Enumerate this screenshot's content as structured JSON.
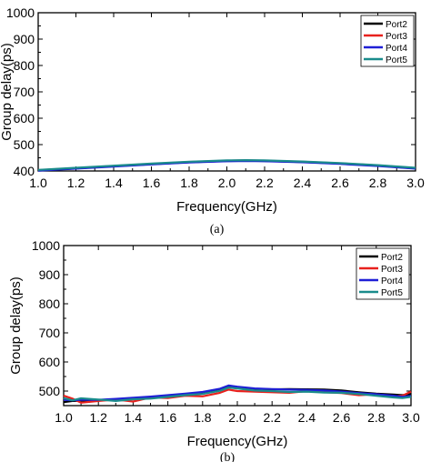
{
  "chart_data": [
    {
      "type": "line",
      "caption": "(a)",
      "xlabel": "Frequency(GHz)",
      "ylabel": "Group delay(ps)",
      "xlim": [
        1.0,
        3.0
      ],
      "ylim": [
        400,
        1000
      ],
      "xticks": [
        "1.0",
        "1.2",
        "1.4",
        "1.6",
        "1.8",
        "2.0",
        "2.2",
        "2.4",
        "2.6",
        "2.8",
        "3.0"
      ],
      "yticks": [
        "400",
        "500",
        "600",
        "700",
        "800",
        "900",
        "1000"
      ],
      "legend": "top-right",
      "grid": false,
      "x": [
        1.0,
        1.2,
        1.4,
        1.6,
        1.8,
        2.0,
        2.1,
        2.2,
        2.4,
        2.6,
        2.8,
        3.0
      ],
      "series": [
        {
          "name": "Port2",
          "color": "#000000",
          "values": [
            402,
            410,
            418,
            426,
            433,
            438,
            439,
            438,
            434,
            428,
            420,
            410
          ]
        },
        {
          "name": "Port3",
          "color": "#e8211d",
          "values": [
            403,
            411,
            419,
            427,
            434,
            439,
            440,
            439,
            435,
            429,
            421,
            411
          ]
        },
        {
          "name": "Port4",
          "color": "#1f1fd6",
          "values": [
            401,
            409,
            417,
            425,
            432,
            437,
            438,
            437,
            433,
            427,
            419,
            409
          ]
        },
        {
          "name": "Port5",
          "color": "#1a8c8c",
          "values": [
            404,
            412,
            420,
            428,
            435,
            440,
            441,
            440,
            436,
            430,
            422,
            412
          ]
        }
      ]
    },
    {
      "type": "line",
      "caption": "(b)",
      "xlabel": "Frequency(GHz)",
      "ylabel": "Group delay(ps)",
      "xlim": [
        1.0,
        3.0
      ],
      "ylim": [
        450,
        1000
      ],
      "xticks": [
        "1.0",
        "1.2",
        "1.4",
        "1.6",
        "1.8",
        "2.0",
        "2.2",
        "2.4",
        "2.6",
        "2.8",
        "3.0"
      ],
      "yticks": [
        "500",
        "600",
        "700",
        "800",
        "900",
        "1000"
      ],
      "legend": "top-right",
      "grid": false,
      "x": [
        1.0,
        1.05,
        1.1,
        1.2,
        1.3,
        1.4,
        1.5,
        1.6,
        1.7,
        1.8,
        1.9,
        1.95,
        2.0,
        2.1,
        2.2,
        2.3,
        2.4,
        2.5,
        2.6,
        2.7,
        2.8,
        2.9,
        2.95,
        3.0
      ],
      "series": [
        {
          "name": "Port2",
          "color": "#000000",
          "values": [
            462,
            466,
            467,
            468,
            470,
            474,
            478,
            483,
            488,
            494,
            505,
            516,
            512,
            507,
            506,
            507,
            506,
            505,
            502,
            496,
            491,
            488,
            486,
            490
          ]
        },
        {
          "name": "Port3",
          "color": "#e8211d",
          "values": [
            484,
            474,
            460,
            466,
            471,
            464,
            478,
            476,
            484,
            482,
            494,
            505,
            500,
            498,
            496,
            494,
            500,
            496,
            493,
            486,
            489,
            482,
            484,
            498
          ]
        },
        {
          "name": "Port4",
          "color": "#1f1fd6",
          "values": [
            470,
            468,
            470,
            470,
            473,
            477,
            481,
            486,
            491,
            497,
            508,
            519,
            515,
            509,
            507,
            505,
            504,
            502,
            498,
            493,
            489,
            484,
            480,
            483
          ]
        },
        {
          "name": "Port5",
          "color": "#1a8c8c",
          "values": [
            476,
            468,
            475,
            471,
            466,
            472,
            474,
            480,
            486,
            490,
            501,
            512,
            509,
            502,
            500,
            497,
            498,
            495,
            494,
            490,
            484,
            478,
            476,
            480
          ]
        }
      ]
    }
  ]
}
